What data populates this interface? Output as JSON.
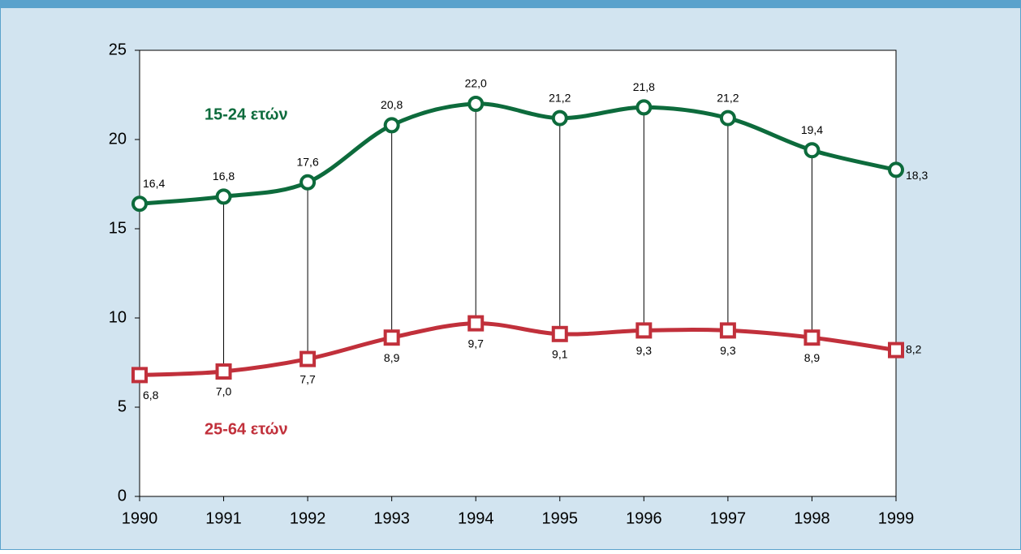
{
  "chart_data": {
    "type": "line",
    "x": [
      1990,
      1991,
      1992,
      1993,
      1994,
      1995,
      1996,
      1997,
      1998,
      1999
    ],
    "xlim": [
      1990,
      1999
    ],
    "xticks": [
      1990,
      1991,
      1992,
      1993,
      1994,
      1995,
      1996,
      1997,
      1998,
      1999
    ],
    "ylim": [
      0,
      25
    ],
    "yticks": [
      0,
      5,
      10,
      15,
      20,
      25
    ],
    "grid": false,
    "series": [
      {
        "name": "15-24 ετών",
        "color": "#0d6b3c",
        "marker": "circle",
        "values": [
          16.4,
          16.8,
          17.6,
          20.8,
          22.0,
          21.2,
          21.8,
          21.2,
          19.4,
          18.3
        ],
        "value_labels": [
          "16,4",
          "16,8",
          "17,6",
          "20,8",
          "22,0",
          "21,2",
          "21,8",
          "21,2",
          "19,4",
          "18,3"
        ]
      },
      {
        "name": "25-64 ετών",
        "color": "#c1303b",
        "marker": "square",
        "values": [
          6.8,
          7.0,
          7.7,
          8.9,
          9.7,
          9.1,
          9.3,
          9.3,
          8.9,
          8.2
        ],
        "value_labels": [
          "6,8",
          "7,0",
          "7,7",
          "8,9",
          "9,7",
          "9,1",
          "9,3",
          "9,3",
          "8,9",
          "8,2"
        ]
      }
    ]
  }
}
